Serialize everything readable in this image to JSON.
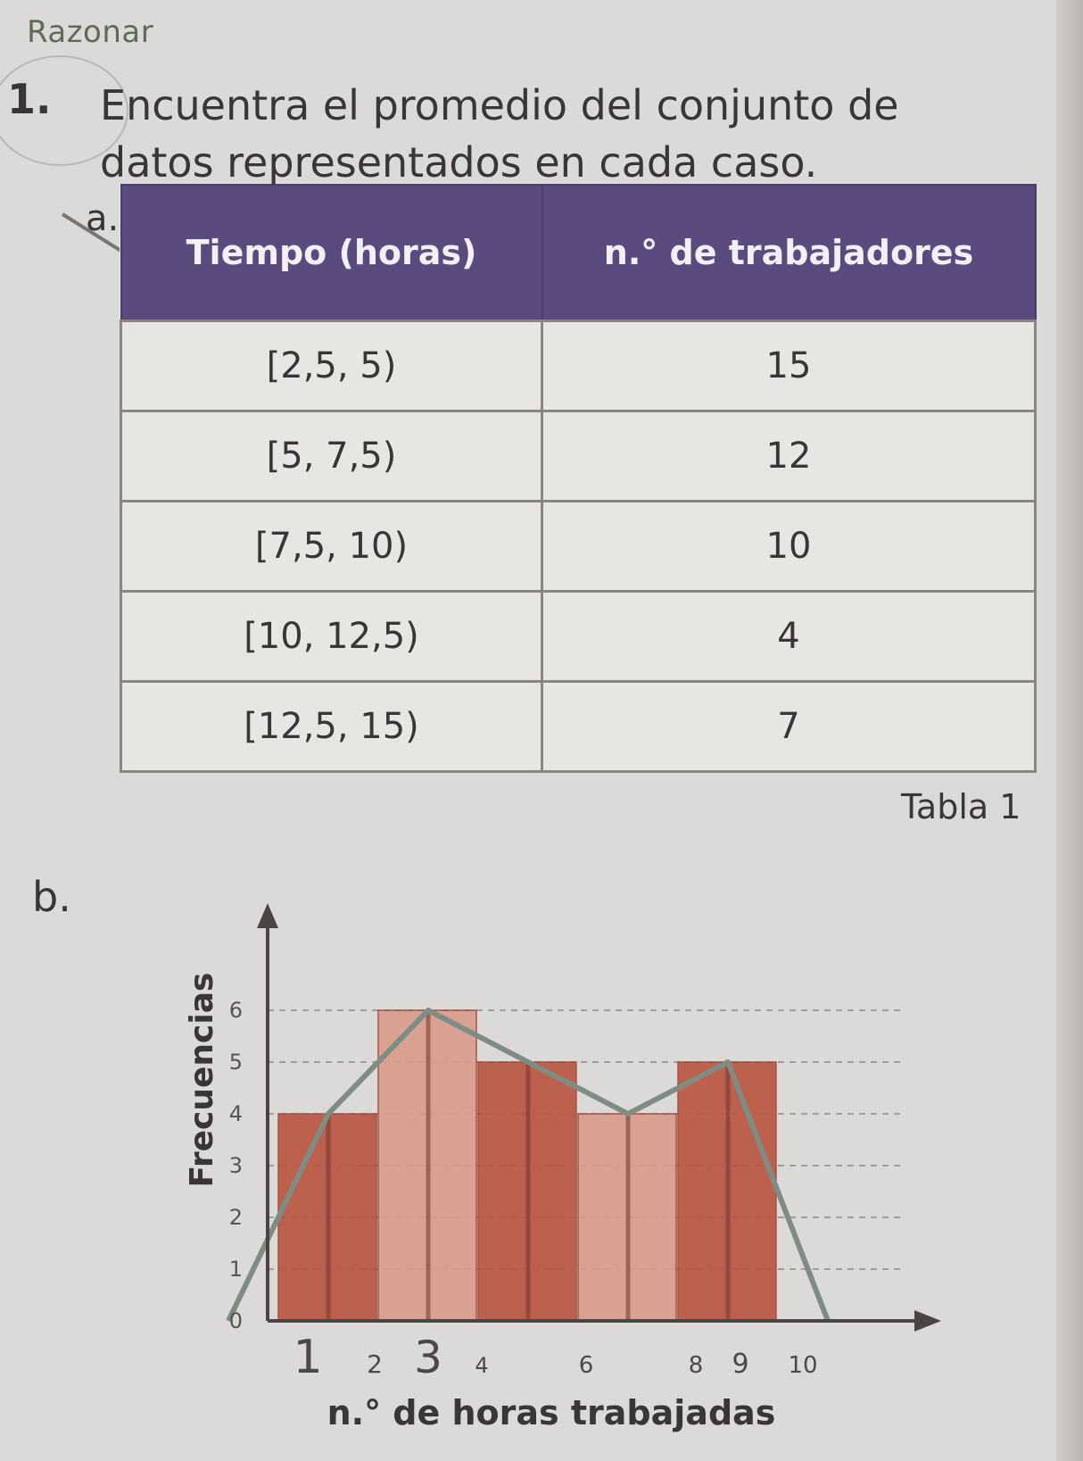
{
  "header": {
    "section": "Razonar",
    "problem_number": "1.",
    "problem_text": "Encuentra el promedio del conjunto de datos representados en cada caso."
  },
  "part_a": {
    "label": "a.",
    "table": {
      "headers": [
        "Tiempo (horas)",
        "n.° de trabajadores"
      ],
      "rows": [
        [
          "[2,5, 5)",
          "15"
        ],
        [
          "[5, 7,5)",
          "12"
        ],
        [
          "[7,5, 10)",
          "10"
        ],
        [
          "[10, 12,5)",
          "4"
        ],
        [
          "[12,5, 15)",
          "7"
        ]
      ]
    },
    "caption": "Tabla 1"
  },
  "part_b": {
    "label": "b."
  },
  "chart_data": {
    "type": "bar",
    "xlabel": "n.° de horas trabajadas",
    "ylabel": "Frecuencias",
    "x_tick_labels": [
      "1",
      "2",
      "3",
      "4",
      "6",
      "8",
      "9",
      "10"
    ],
    "y_ticks": [
      0,
      1,
      2,
      3,
      4,
      5,
      6
    ],
    "ylim": [
      0,
      6.5
    ],
    "categories": [
      "1-3",
      "3-5",
      "5-7",
      "7-9",
      "9-11"
    ],
    "values": [
      4,
      6,
      5,
      4,
      5
    ],
    "polygon": {
      "x": [
        0,
        2,
        4,
        6,
        8,
        10,
        12
      ],
      "y": [
        0,
        4,
        6,
        5,
        4,
        5,
        0
      ]
    },
    "colors": {
      "bar_dark": "#b9543f",
      "bar_light": "#d89b8a",
      "polygon": "#7f8c83",
      "axis": "#4a4542"
    }
  }
}
